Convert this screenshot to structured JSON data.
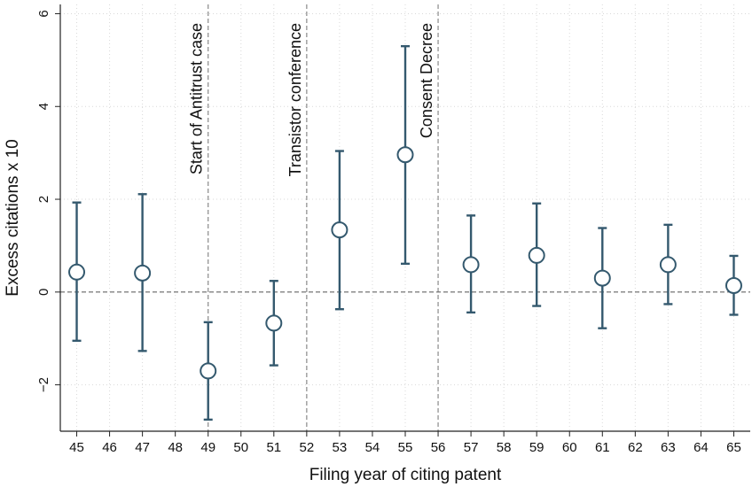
{
  "chart_data": {
    "type": "scatter",
    "title": "",
    "xlabel": "Filing year of citing patent",
    "ylabel": "Excess citations x 10",
    "xlim": [
      44.5,
      65.5
    ],
    "ylim": [
      -3,
      6.2
    ],
    "x_ticks": [
      45,
      46,
      47,
      48,
      49,
      50,
      51,
      52,
      53,
      54,
      55,
      56,
      57,
      58,
      59,
      60,
      61,
      62,
      63,
      64,
      65
    ],
    "y_ticks": [
      -2,
      0,
      2,
      4,
      6
    ],
    "y_tick_labels": [
      "−2",
      "0",
      "2",
      "4",
      "6"
    ],
    "grid": true,
    "reference_line_y": 0,
    "vertical_lines": [
      {
        "x": 49,
        "label": "Start of Antitrust case"
      },
      {
        "x": 52,
        "label": "Transistor conference"
      },
      {
        "x": 56,
        "label": "Consent Decree"
      }
    ],
    "points": [
      {
        "x": 45,
        "y": 0.43,
        "lo": -1.05,
        "hi": 1.93
      },
      {
        "x": 47,
        "y": 0.41,
        "lo": -1.27,
        "hi": 2.11
      },
      {
        "x": 49,
        "y": -1.7,
        "lo": -2.75,
        "hi": -0.65
      },
      {
        "x": 51,
        "y": -0.67,
        "lo": -1.58,
        "hi": 0.24
      },
      {
        "x": 53,
        "y": 1.34,
        "lo": -0.37,
        "hi": 3.04
      },
      {
        "x": 55,
        "y": 2.96,
        "lo": 0.61,
        "hi": 5.3
      },
      {
        "x": 57,
        "y": 0.59,
        "lo": -0.44,
        "hi": 1.65
      },
      {
        "x": 59,
        "y": 0.79,
        "lo": -0.3,
        "hi": 1.91
      },
      {
        "x": 61,
        "y": 0.3,
        "lo": -0.78,
        "hi": 1.38
      },
      {
        "x": 63,
        "y": 0.59,
        "lo": -0.26,
        "hi": 1.45
      },
      {
        "x": 65,
        "y": 0.14,
        "lo": -0.49,
        "hi": 0.78
      }
    ],
    "colors": {
      "series": "#34596e",
      "grid": "#d9d9d9",
      "ref_line": "#666666"
    }
  }
}
